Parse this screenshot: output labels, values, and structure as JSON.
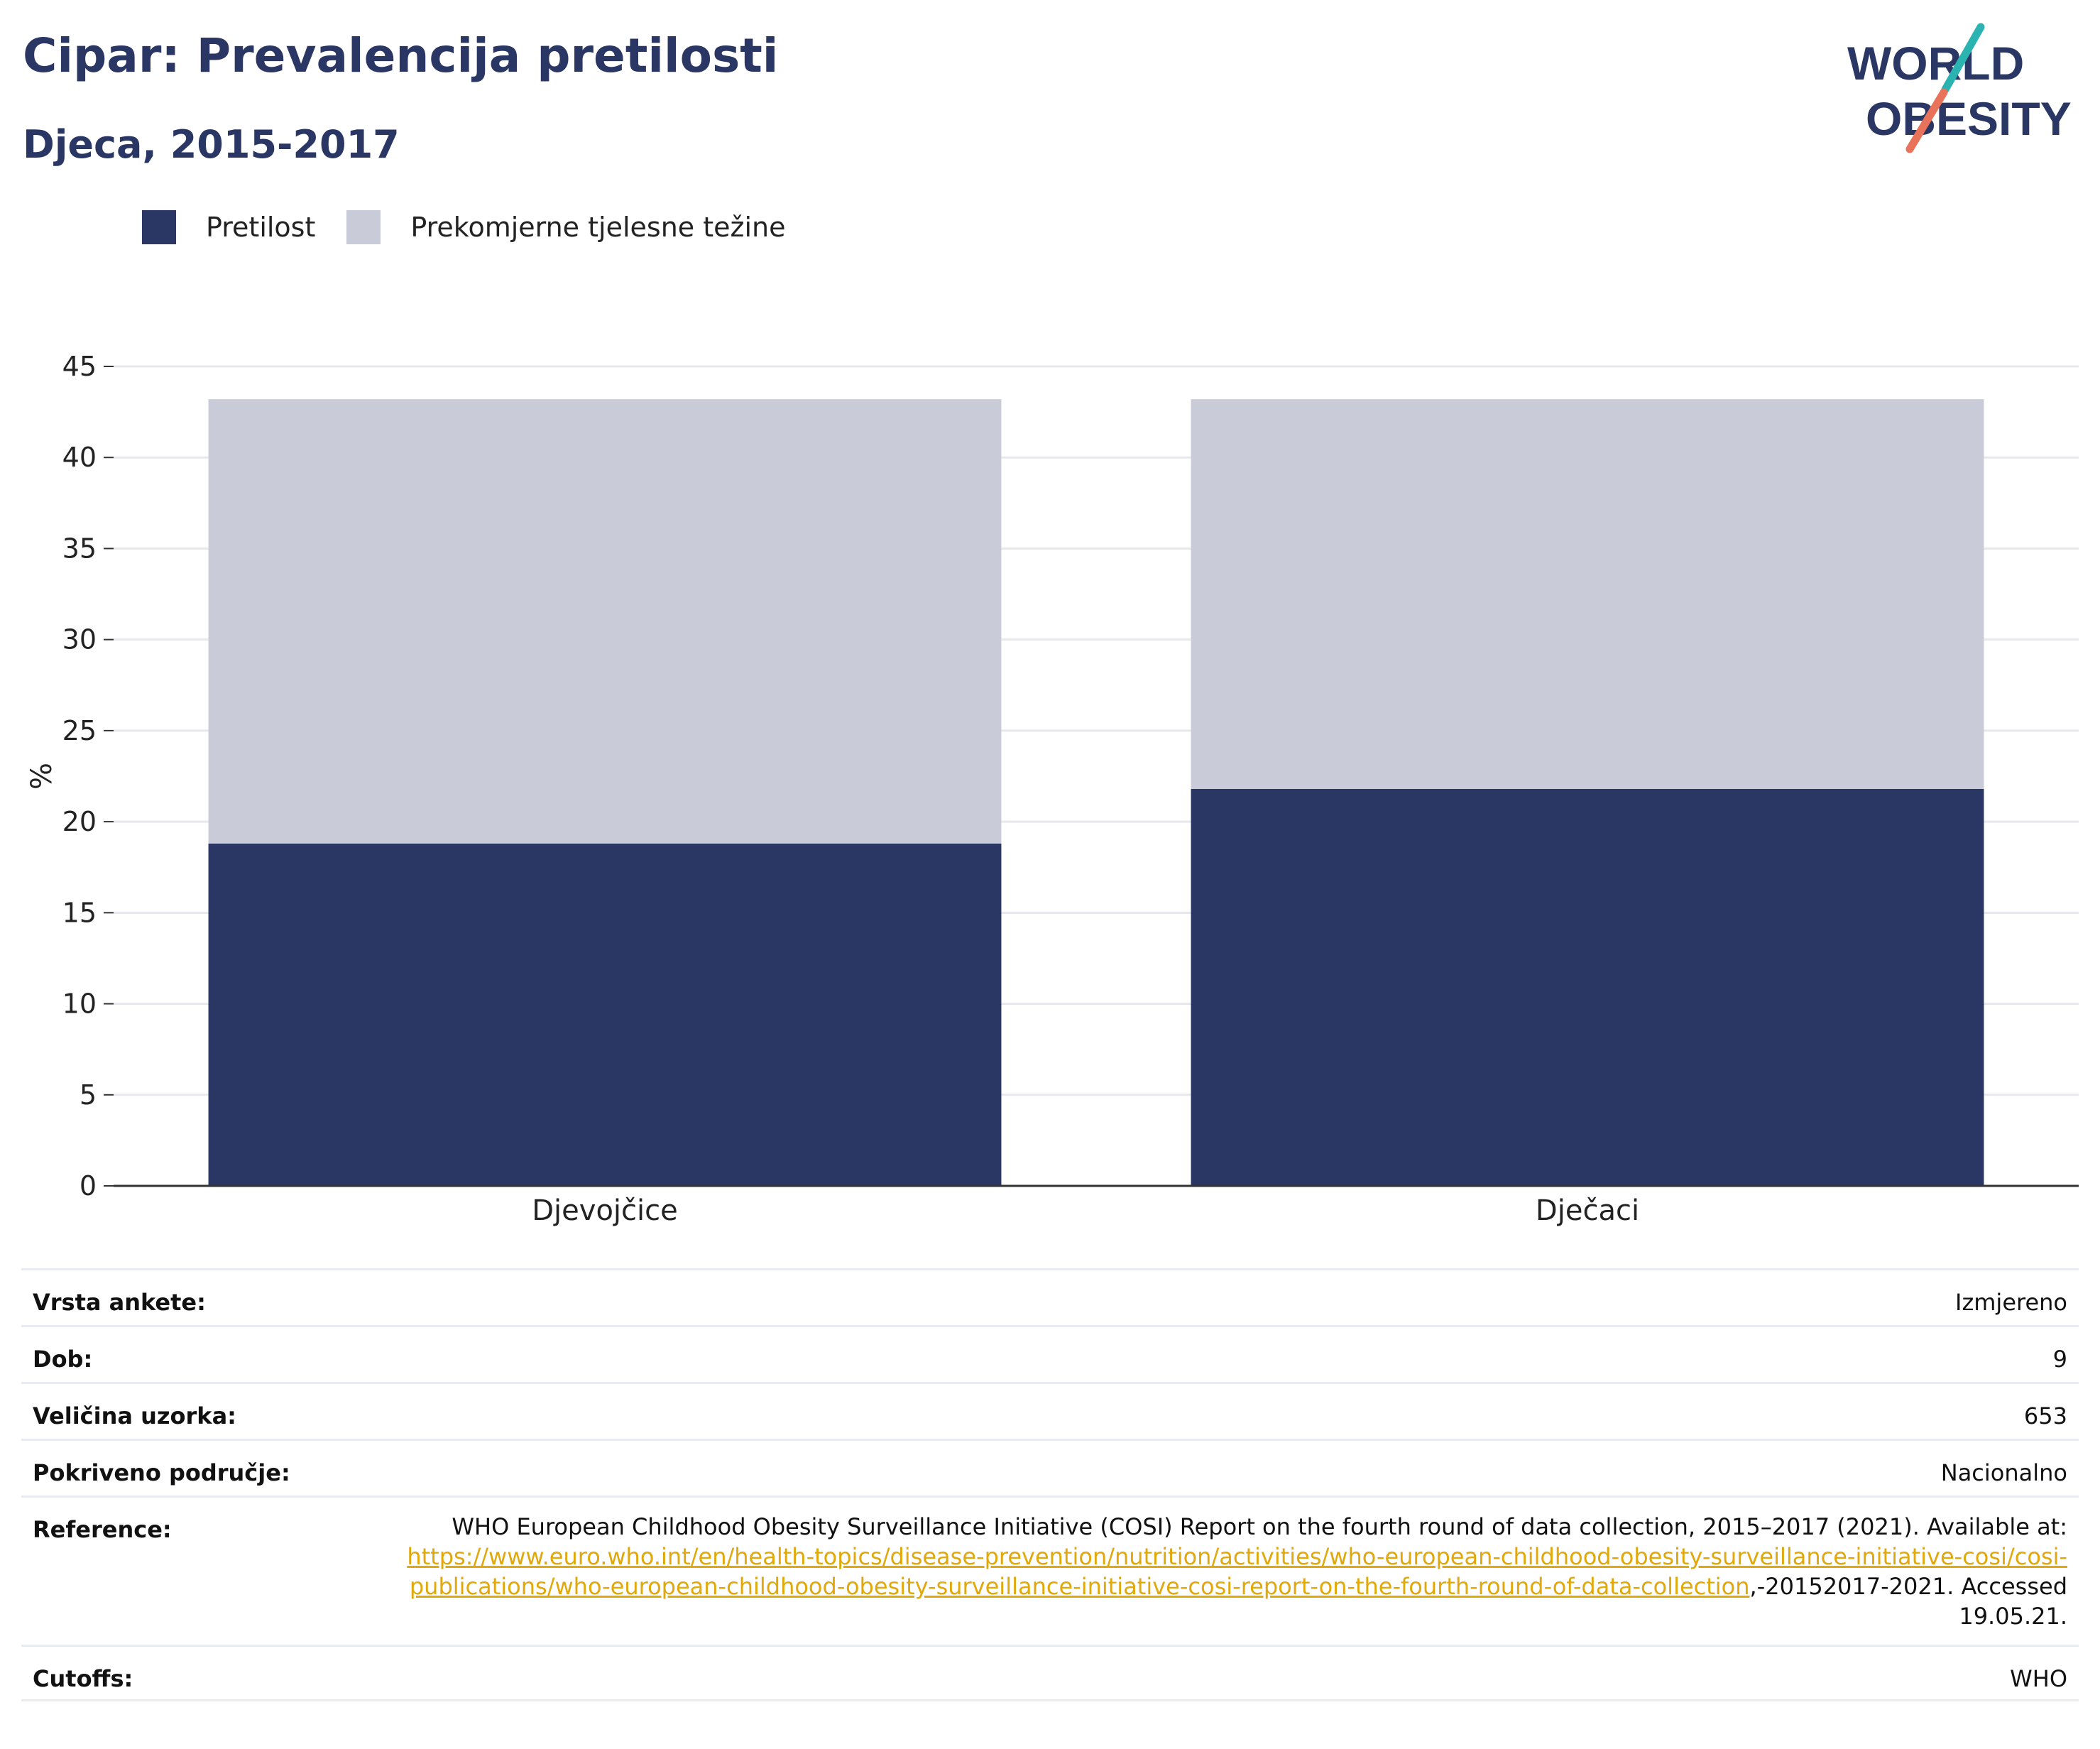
{
  "header": {
    "title": "Cipar: Prevalencija pretilosti",
    "subtitle": "Djeca, 2015-2017"
  },
  "logo": {
    "line1": "WORLD",
    "line2": "OBESITY",
    "colors": {
      "text": "#2a3663",
      "slash_top": "#2ab3b1",
      "slash_bottom": "#e8735a"
    }
  },
  "legend": [
    {
      "label": "Pretilost",
      "color": "#2a3663"
    },
    {
      "label": "Prekomjerne tjelesne težine",
      "color": "#c9ccd8"
    }
  ],
  "chart_data": {
    "type": "bar",
    "stacked": true,
    "categories": [
      "Djevojčice",
      "Dječaci"
    ],
    "series": [
      {
        "name": "Pretilost",
        "values": [
          18.8,
          21.8
        ],
        "color": "#2a3663"
      },
      {
        "name": "Prekomjerne tjelesne težine",
        "values": [
          24.4,
          21.4
        ],
        "color": "#c9ccd8"
      }
    ],
    "ylabel": "%",
    "ylim": [
      0,
      45
    ],
    "yticks": [
      0,
      5,
      10,
      15,
      20,
      25,
      30,
      35,
      40,
      45
    ],
    "grid": true,
    "legend_position": "top-left"
  },
  "info": {
    "survey_type": {
      "label": "Vrsta ankete:",
      "value": "Izmjereno"
    },
    "age": {
      "label": "Dob:",
      "value": "9"
    },
    "sample_size": {
      "label": "Veličina uzorka:",
      "value": "653"
    },
    "area": {
      "label": "Pokriveno područje:",
      "value": "Nacionalno"
    },
    "references": {
      "label": "Reference:",
      "text_before": "WHO European Childhood Obesity Surveillance Initiative (COSI) Report on the fourth round of data collection, 2015–2017 (2021). Available at: ",
      "link": "https://www.euro.who.int/en/health-topics/disease-prevention/nutrition/activities/who-european-childhood-obesity-surveillance-initiative-cosi/cosi-publications/who-european-childhood-obesity-surveillance-initiative-cosi-report-on-the-fourth-round-of-data-collection",
      "text_after": ",-20152017-2021. Accessed 19.05.21."
    },
    "cutoffs": {
      "label": "Cutoffs:",
      "value": "WHO"
    }
  }
}
